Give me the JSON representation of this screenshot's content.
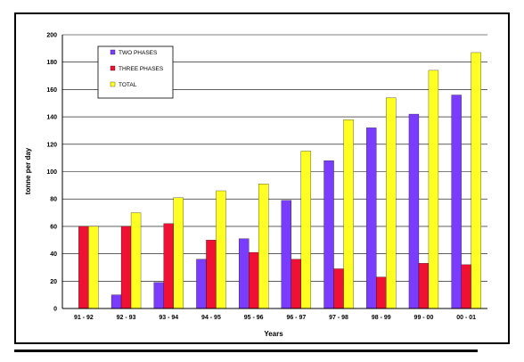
{
  "chart_data": {
    "type": "bar",
    "xlabel": "Years",
    "ylabel": "tonne per day",
    "ylim": [
      0,
      200
    ],
    "yticks": [
      0,
      20,
      40,
      60,
      80,
      100,
      120,
      140,
      160,
      180,
      200
    ],
    "grid": true,
    "legend_position": "top-left",
    "categories": [
      "91 - 92",
      "92 - 93",
      "93 - 94",
      "94 - 95",
      "95 - 96",
      "96 - 97",
      "97 - 98",
      "98 - 99",
      "99 - 00",
      "00 - 01"
    ],
    "series": [
      {
        "name": "TWO PHASES",
        "color": "#7a3cff",
        "values": [
          0,
          10,
          19,
          36,
          51,
          79,
          108,
          132,
          142,
          156
        ]
      },
      {
        "name": "THREE PHASES",
        "color": "#ee1133",
        "values": [
          60,
          60,
          62,
          50,
          41,
          36,
          29,
          23,
          33,
          32
        ]
      },
      {
        "name": "TOTAL",
        "color": "#ffff22",
        "values": [
          60,
          70,
          81,
          86,
          91,
          115,
          138,
          154,
          174,
          187
        ]
      }
    ]
  }
}
